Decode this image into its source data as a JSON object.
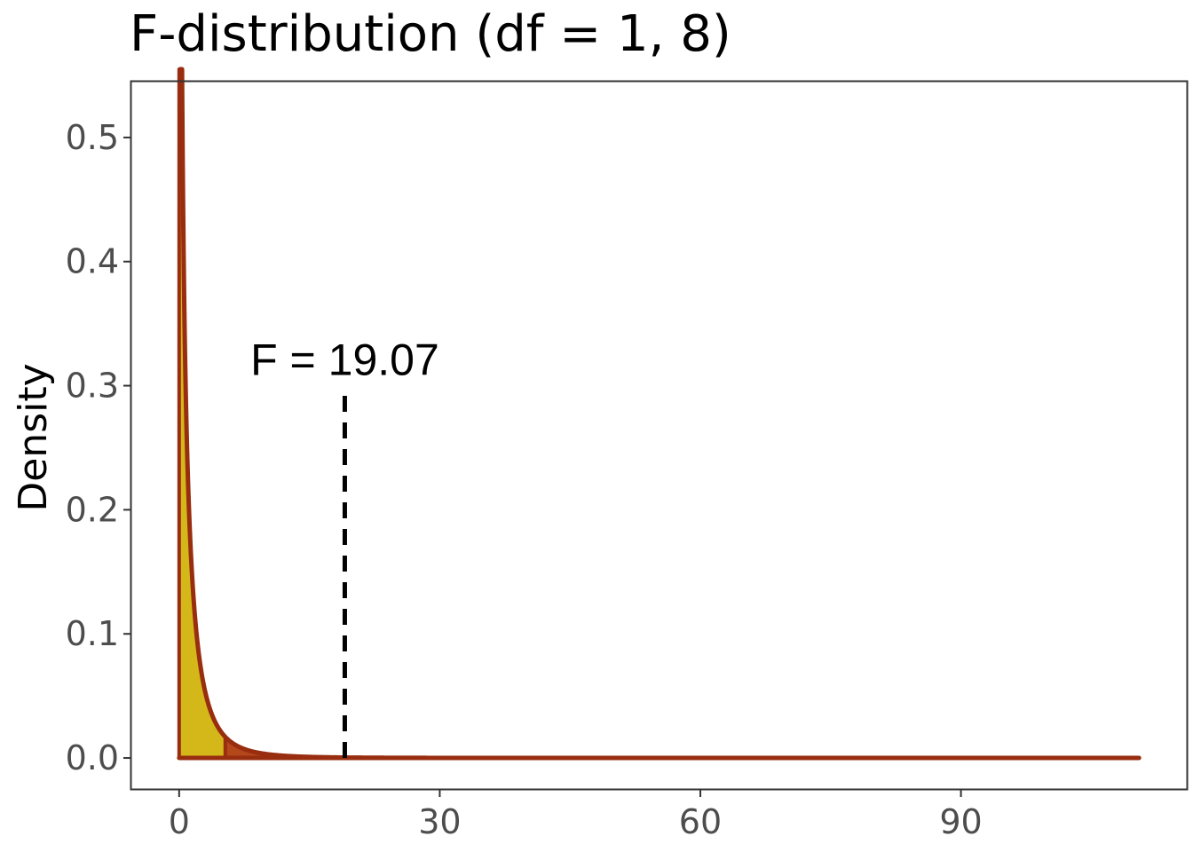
{
  "chart_data": {
    "type": "area",
    "title": "F-distribution (df = 1, 8)",
    "xlabel": "",
    "ylabel": "Density",
    "df1": 1,
    "df2": 8,
    "xlim": [
      -5.5,
      116.0
    ],
    "ylim": [
      -0.025,
      0.545
    ],
    "x_ticks": [
      0,
      30,
      60,
      90
    ],
    "x_tick_labels": [
      "0",
      "30",
      "60",
      "90"
    ],
    "y_ticks": [
      0.0,
      0.1,
      0.2,
      0.3,
      0.4,
      0.5
    ],
    "y_tick_labels": [
      "0.0",
      "0.1",
      "0.2",
      "0.3",
      "0.4",
      "0.5"
    ],
    "grid": false,
    "curve_x_range": [
      0,
      110.5
    ],
    "regions": [
      {
        "from": 0,
        "to": 5.32,
        "color": "#D4B81A"
      },
      {
        "from": 5.32,
        "to": 110.5,
        "color": "#B5481A"
      }
    ],
    "line_color": "#982D0F",
    "observed_statistic": 19.07,
    "annotation": {
      "text": "F = 19.07",
      "x": 19.07,
      "y": 0.3
    }
  }
}
